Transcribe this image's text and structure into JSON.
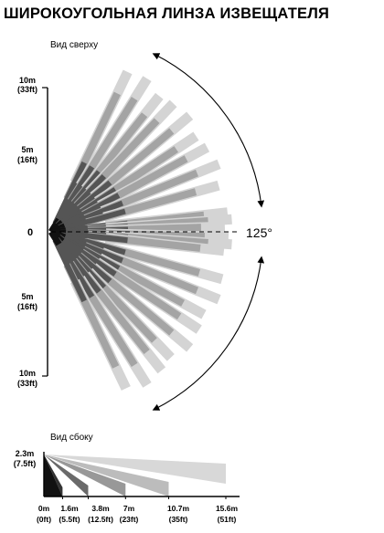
{
  "title": "ШИРОКОУГОЛЬНАЯ ЛИНЗА ИЗВЕЩАТЕЛЯ",
  "top_view": {
    "label": "Вид сверху",
    "scale": [
      {
        "m": "10m",
        "ft": "(33ft)",
        "value": 10
      },
      {
        "m": "5m",
        "ft": "(16ft)",
        "value": 5
      },
      {
        "m": "0",
        "ft": "",
        "value": 0
      },
      {
        "m": "5m",
        "ft": "(16ft)",
        "value": -5
      },
      {
        "m": "10m",
        "ft": "(33ft)",
        "value": -10
      }
    ],
    "angle": "125°",
    "colors": {
      "light": "#d4d4d4",
      "mid": "#a4a4a4",
      "dark": "#555555",
      "black": "#111111"
    }
  },
  "side_view": {
    "label": "Вид сбоку",
    "height": {
      "m": "2.3m",
      "ft": "(7.5ft)",
      "value": 2.3
    },
    "distances": [
      {
        "m": "0m",
        "ft": "(0ft)",
        "value": 0
      },
      {
        "m": "1.6m",
        "ft": "(5.5ft)",
        "value": 1.6
      },
      {
        "m": "3.8m",
        "ft": "(12.5ft)",
        "value": 3.8
      },
      {
        "m": "7m",
        "ft": "(23ft)",
        "value": 7
      },
      {
        "m": "10.7m",
        "ft": "(35ft)",
        "value": 10.7
      },
      {
        "m": "15.6m",
        "ft": "(51ft)",
        "value": 15.6
      }
    ]
  }
}
